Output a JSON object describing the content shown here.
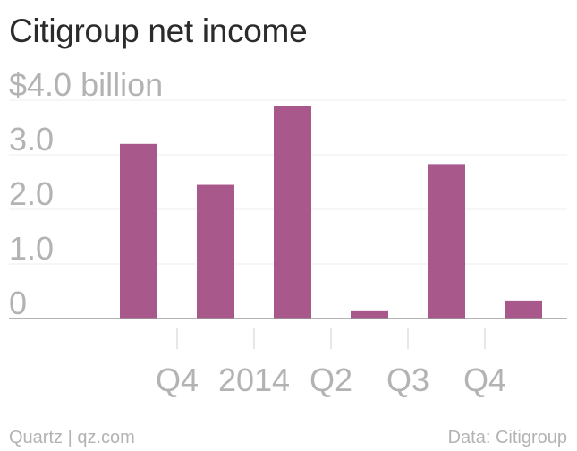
{
  "chart_data": {
    "type": "bar",
    "title": "Citigroup net income",
    "categories": [
      "",
      "Q4",
      "2014",
      "Q2",
      "Q3",
      "Q4"
    ],
    "tick_labels": [
      "Q4",
      "2014",
      "Q2",
      "Q3",
      "Q4"
    ],
    "values": [
      3.2,
      2.45,
      3.9,
      0.15,
      2.83,
      0.33
    ],
    "y_ticks": [
      "0",
      "1.0",
      "2.0",
      "3.0",
      "$4.0 billion"
    ],
    "y_tick_values": [
      0,
      1,
      2,
      3,
      4
    ],
    "ylim": [
      0,
      4
    ],
    "xlabel": "",
    "ylabel": "",
    "grid": true,
    "legend": "none",
    "bar_color": "#a8588b"
  },
  "footer": {
    "source_left": "Quartz | qz.com",
    "source_right": "Data: Citigroup"
  }
}
